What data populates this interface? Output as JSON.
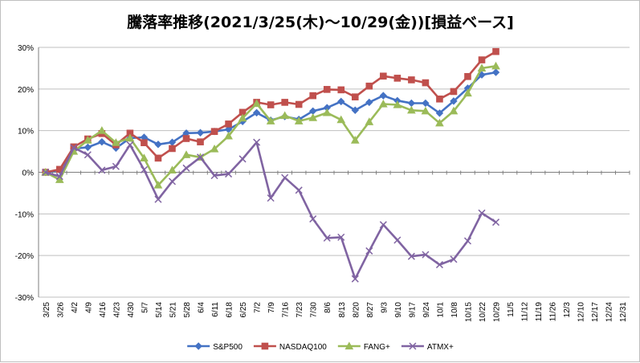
{
  "chart_data": {
    "type": "line",
    "title": "騰落率推移(2021/3/25(木)～10/29(金))[損益ベース]",
    "xlabel": "",
    "ylabel": "",
    "ylim": [
      -30,
      30
    ],
    "y_ticks": [
      "30%",
      "20%",
      "10%",
      "0%",
      "-10%",
      "-20%",
      "-30%"
    ],
    "y_tick_values": [
      30,
      20,
      10,
      0,
      -10,
      -20,
      -30
    ],
    "x_ticks": [
      "3/25",
      "3/26",
      "4/2",
      "4/9",
      "4/16",
      "4/23",
      "4/30",
      "5/7",
      "5/14",
      "5/21",
      "5/28",
      "6/4",
      "6/11",
      "6/18",
      "6/25",
      "7/2",
      "7/9",
      "7/16",
      "7/23",
      "7/30",
      "8/6",
      "8/13",
      "8/20",
      "8/27",
      "9/3",
      "9/10",
      "9/17",
      "9/24",
      "10/1",
      "10/8",
      "10/15",
      "10/22",
      "10/29",
      "11/5",
      "11/12",
      "11/19",
      "11/26",
      "12/3",
      "12/10",
      "12/17",
      "12/24",
      "12/31"
    ],
    "grid": "horizontal",
    "legend_position": "bottom",
    "series": [
      {
        "name": "S&P500",
        "color": "#4472c4",
        "marker": "diamond",
        "values": [
          0,
          0.5,
          5.7,
          6.0,
          7.3,
          5.8,
          8.2,
          8.4,
          6.7,
          7.2,
          9.4,
          9.5,
          9.8,
          10.3,
          12.2,
          14.3,
          12.5,
          13.4,
          12.7,
          14.7,
          15.5,
          17.0,
          14.9,
          16.8,
          18.4,
          17.2,
          16.6,
          16.6,
          14.2,
          17.1,
          20.2,
          23.4,
          24.0
        ]
      },
      {
        "name": "NASDAQ100",
        "color": "#c0504d",
        "marker": "square",
        "values": [
          0,
          0.7,
          6.1,
          8.0,
          9.3,
          6.6,
          9.4,
          7.1,
          3.4,
          5.7,
          8.1,
          7.3,
          9.8,
          11.6,
          14.4,
          16.8,
          16.2,
          16.8,
          16.3,
          18.4,
          19.9,
          19.8,
          18.1,
          20.7,
          23.1,
          22.6,
          22.2,
          21.5,
          17.6,
          19.4,
          23.0,
          27.0,
          29.0
        ]
      },
      {
        "name": "FANG+",
        "color": "#9bbb59",
        "marker": "triangle",
        "values": [
          0,
          -1.8,
          5.0,
          7.7,
          10.0,
          7.1,
          8.2,
          3.4,
          -3.1,
          0.5,
          4.2,
          3.6,
          5.6,
          8.7,
          13.0,
          16.5,
          12.3,
          13.6,
          12.3,
          13.1,
          14.3,
          12.6,
          7.7,
          12.1,
          16.4,
          16.2,
          14.9,
          14.7,
          11.8,
          14.7,
          19.0,
          25.0,
          25.5
        ]
      },
      {
        "name": "ATMX+",
        "color": "#8064a2",
        "marker": "x",
        "values": [
          0,
          -1.0,
          5.9,
          4.2,
          0.5,
          1.4,
          6.6,
          0.6,
          -6.5,
          -2.2,
          1.0,
          3.6,
          -0.8,
          -0.4,
          3.2,
          7.2,
          -6.2,
          -1.3,
          -4.3,
          -11.2,
          -15.8,
          -15.6,
          -25.6,
          -18.9,
          -12.6,
          -16.3,
          -20.2,
          -19.8,
          -22.2,
          -20.9,
          -16.5,
          -9.8,
          -12.0
        ]
      }
    ]
  }
}
